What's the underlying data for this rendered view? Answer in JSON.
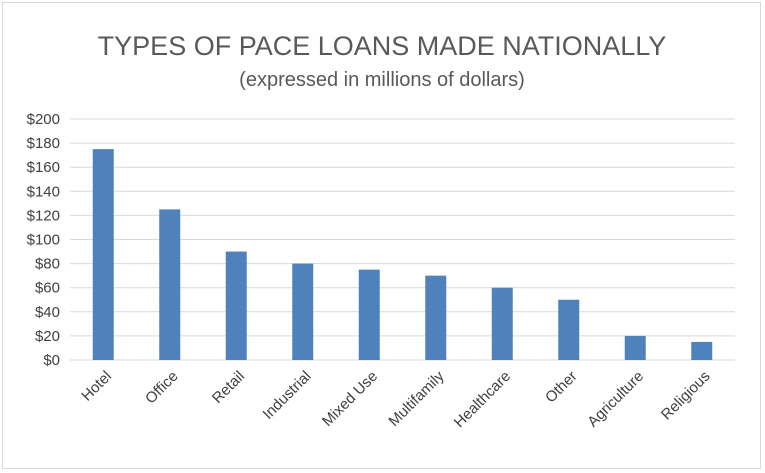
{
  "chart_data": {
    "type": "bar",
    "title": "TYPES OF PACE LOANS MADE NATIONALLY",
    "subtitle": "(expressed in millions of dollars)",
    "categories": [
      "Hotel",
      "Office",
      "Retail",
      "Industrial",
      "Mixed Use",
      "Multifamily",
      "Healthcare",
      "Other",
      "Agriculture",
      "Religious"
    ],
    "values": [
      175,
      125,
      90,
      80,
      75,
      70,
      60,
      50,
      20,
      15
    ],
    "ylim": [
      0,
      200
    ],
    "yticks": [
      0,
      20,
      40,
      60,
      80,
      100,
      120,
      140,
      160,
      180,
      200
    ],
    "ytick_labels": [
      "$0",
      "$20",
      "$40",
      "$60",
      "$80",
      "$100",
      "$120",
      "$140",
      "$160",
      "$180",
      "$200"
    ],
    "grid": true,
    "bar_color": "#4f81bd",
    "grid_color": "#d9d9d9"
  }
}
